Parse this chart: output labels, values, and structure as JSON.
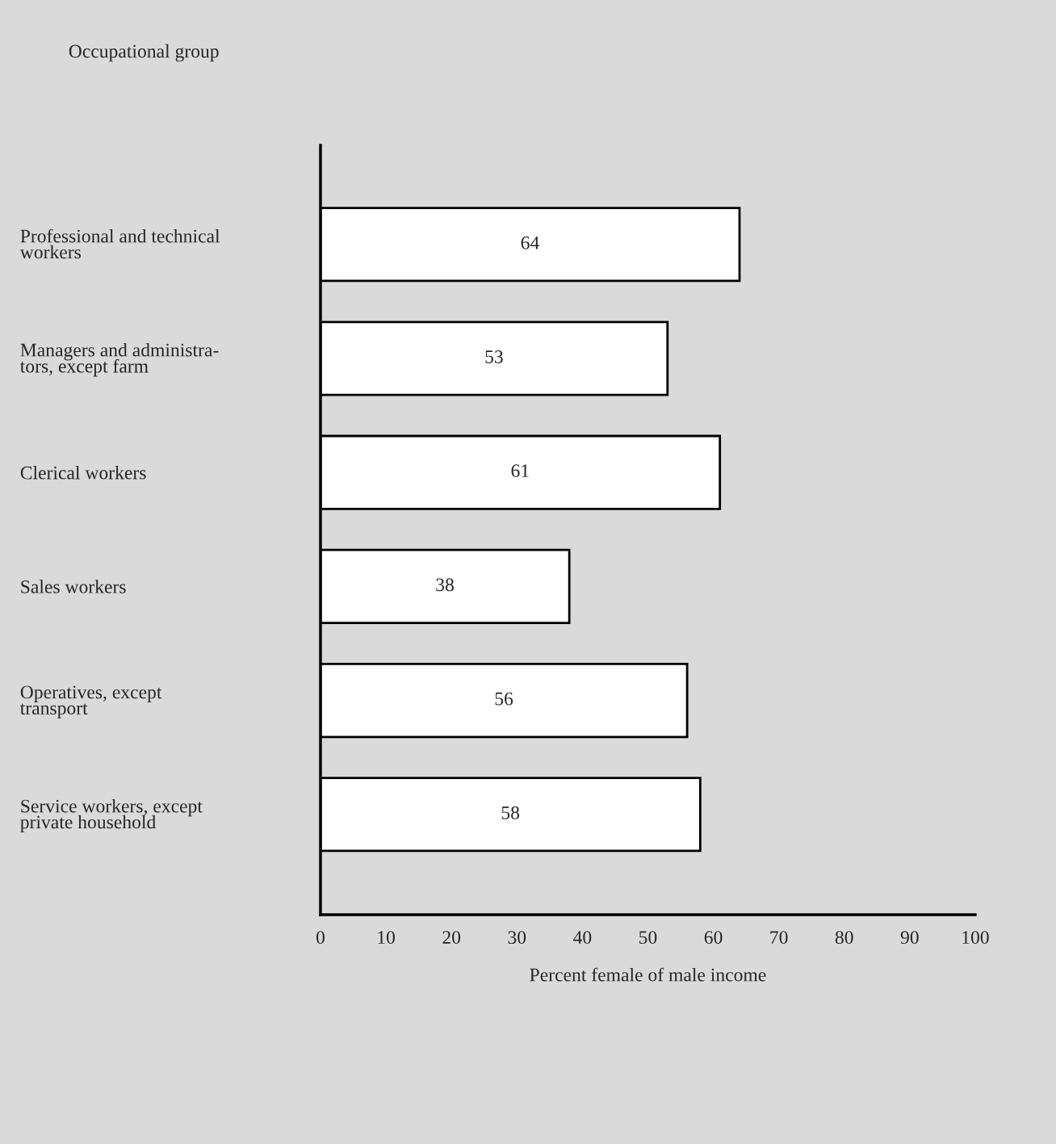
{
  "chart_data": {
    "type": "bar",
    "orientation": "horizontal",
    "ylabel": "Occupational group",
    "xlabel": "Percent female of male income",
    "categories": [
      "Professional and technical\nworkers",
      "Managers and administra-\ntors, except farm",
      "Clerical workers",
      "Sales workers",
      "Operatives, except\ntransport",
      "Service workers, except\nprivate household"
    ],
    "values": [
      64,
      53,
      61,
      38,
      56,
      58
    ],
    "color": "#ffffff",
    "xlim": [
      0,
      100
    ],
    "xticks": [
      0,
      10,
      20,
      30,
      40,
      50,
      60,
      70,
      80,
      90,
      100
    ],
    "data_labels": true,
    "grid": false,
    "legend": false
  }
}
